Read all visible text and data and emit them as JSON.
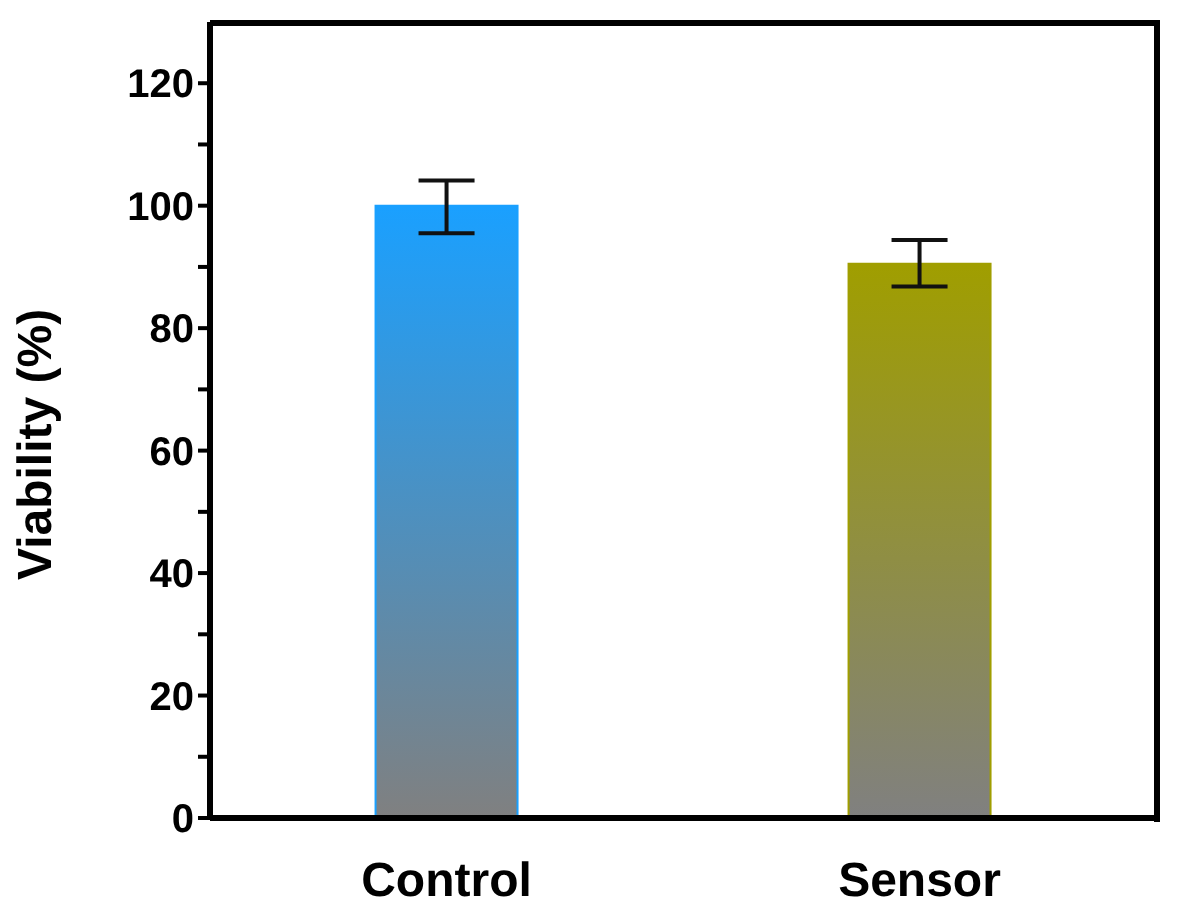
{
  "chart_data": {
    "type": "bar",
    "ylabel": "Viability (%)",
    "categories": [
      "Control",
      "Sensor"
    ],
    "values": [
      100,
      90.5
    ],
    "colors": [
      "#1aa0ff",
      "#a09e00"
    ],
    "errors": [
      [
        95.5,
        104.1
      ],
      [
        86.8,
        94.4
      ]
    ],
    "ylim": [
      0,
      130
    ],
    "yticks": [
      0,
      {
        "value": 10,
        "label": null
      },
      20,
      {
        "value": 30,
        "label": null
      },
      40,
      {
        "value": 50,
        "label": null
      },
      60,
      {
        "value": 70,
        "label": null
      },
      80,
      {
        "value": 90,
        "label": null
      },
      100,
      {
        "value": 110,
        "label": null
      },
      120
    ],
    "grid": false,
    "legend": false
  }
}
